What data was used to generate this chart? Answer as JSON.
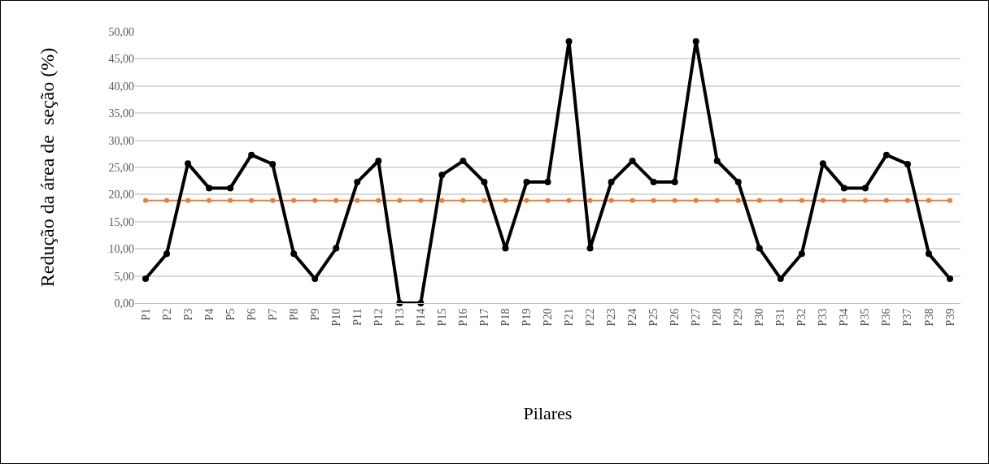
{
  "chart_data": {
    "type": "line",
    "xlabel": "Pilares",
    "ylabel": "Redução da área de  seção (%)",
    "categories": [
      "P1",
      "P2",
      "P3",
      "P4",
      "P5",
      "P6",
      "P7",
      "P8",
      "P9",
      "P10",
      "P11",
      "P12",
      "P13",
      "P14",
      "P15",
      "P16",
      "P17",
      "P18",
      "P19",
      "P20",
      "P21",
      "P22",
      "P23",
      "P24",
      "P25",
      "P26",
      "P27",
      "P28",
      "P29",
      "P30",
      "P31",
      "P32",
      "P33",
      "P34",
      "P35",
      "P36",
      "P37",
      "P38",
      "P39"
    ],
    "series": [
      {
        "color": "#000000",
        "values": [
          4.5,
          9.1,
          25.7,
          21.2,
          21.2,
          27.3,
          25.6,
          9.1,
          4.5,
          10.1,
          22.3,
          26.2,
          0,
          0,
          23.6,
          26.2,
          22.3,
          10.1,
          22.3,
          22.3,
          48.2,
          10.1,
          22.3,
          26.2,
          22.3,
          22.3,
          48.2,
          26.2,
          22.3,
          10.1,
          4.5,
          9.1,
          25.7,
          21.2,
          21.2,
          27.3,
          25.6,
          9.1,
          4.5
        ]
      },
      {
        "color": "#ed7d31",
        "values": [
          18.9,
          18.9,
          18.9,
          18.9,
          18.9,
          18.9,
          18.9,
          18.9,
          18.9,
          18.9,
          18.9,
          18.9,
          18.9,
          18.9,
          18.9,
          18.9,
          18.9,
          18.9,
          18.9,
          18.9,
          18.9,
          18.9,
          18.9,
          18.9,
          18.9,
          18.9,
          18.9,
          18.9,
          18.9,
          18.9,
          18.9,
          18.9,
          18.9,
          18.9,
          18.9,
          18.9,
          18.9,
          18.9,
          18.9
        ]
      }
    ],
    "ylim": [
      0,
      50
    ],
    "yticks": [
      {
        "value": 0,
        "label": "0,00"
      },
      {
        "value": 5,
        "label": "5,00"
      },
      {
        "value": 10,
        "label": "10,00"
      },
      {
        "value": 15,
        "label": "15,00"
      },
      {
        "value": 20,
        "label": "20,00"
      },
      {
        "value": 25,
        "label": "25,00"
      },
      {
        "value": 30,
        "label": "30,00"
      },
      {
        "value": 35,
        "label": "35,00"
      },
      {
        "value": 40,
        "label": "40,00"
      },
      {
        "value": 45,
        "label": "45,00"
      },
      {
        "value": 50,
        "label": "50,00"
      }
    ],
    "grid": "y",
    "marker": "circle",
    "line_style": "solid"
  }
}
